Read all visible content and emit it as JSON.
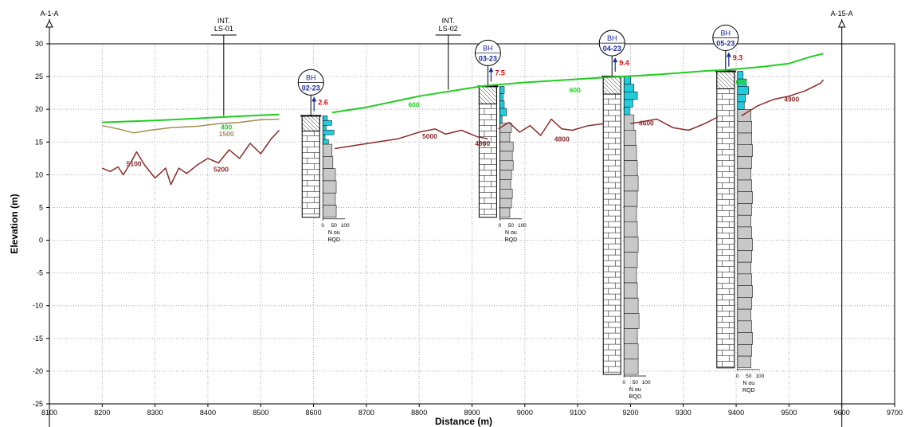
{
  "chart_data": {
    "type": "line",
    "title": "",
    "xlabel": "Distance  (m)",
    "ylabel": "Elevation (m)",
    "xlim": [
      8100,
      9700
    ],
    "ylim": [
      -25,
      30
    ],
    "x_ticks": [
      "8100",
      "8200",
      "8300",
      "8400",
      "8500",
      "8600",
      "8700",
      "8800",
      "8900",
      "9000",
      "9100",
      "9200",
      "9300",
      "9400",
      "9500",
      "9600",
      "9700"
    ],
    "y_ticks": [
      "30",
      "25",
      "20",
      "15",
      "10",
      "5",
      "0",
      "-5",
      "-10",
      "-15",
      "-20",
      "-25"
    ],
    "grid": true,
    "section_ends": [
      {
        "label": "A-1-A",
        "x": 8100
      },
      {
        "label": "A-15-A",
        "x": 9600
      }
    ],
    "intersections": [
      {
        "label1": "INT.",
        "label2": "LS-01",
        "x": 8430,
        "y": 19.0
      },
      {
        "label1": "INT.",
        "label2": "LS-02",
        "x": 8855,
        "y": 23.0
      }
    ],
    "series": [
      {
        "name": "",
        "color": "#22cc22",
        "segments": [
          [
            [
              8200,
              18.0
            ],
            [
              8300,
              18.3
            ],
            [
              8400,
              18.7
            ],
            [
              8500,
              19.1
            ],
            [
              8535,
              19.2
            ]
          ],
          [
            [
              8635,
              19.5
            ],
            [
              8700,
              20.3
            ],
            [
              8800,
              22.0
            ],
            [
              8900,
              23.3
            ],
            [
              8925,
              23.6
            ],
            [
              9000,
              24.1
            ],
            [
              9100,
              24.6
            ],
            [
              9160,
              24.9
            ],
            [
              9250,
              25.3
            ],
            [
              9350,
              25.9
            ],
            [
              9380,
              26.0
            ],
            [
              9450,
              26.5
            ],
            [
              9500,
              27.0
            ],
            [
              9540,
              28.0
            ],
            [
              9565,
              28.5
            ]
          ]
        ]
      },
      {
        "name": "",
        "color": "#a09050",
        "segments": [
          [
            [
              8200,
              17.5
            ],
            [
              8230,
              17.0
            ],
            [
              8260,
              16.4
            ],
            [
              8290,
              16.8
            ],
            [
              8330,
              17.2
            ],
            [
              8380,
              17.4
            ],
            [
              8420,
              17.8
            ],
            [
              8460,
              18.0
            ],
            [
              8500,
              18.4
            ],
            [
              8535,
              18.5
            ]
          ]
        ]
      },
      {
        "name": "",
        "color": "#8b2a2a",
        "segments": [
          [
            [
              8200,
              11.0
            ],
            [
              8215,
              10.5
            ],
            [
              8230,
              11.2
            ],
            [
              8240,
              10.0
            ],
            [
              8255,
              12.0
            ],
            [
              8265,
              13.5
            ],
            [
              8280,
              11.5
            ],
            [
              8300,
              9.5
            ],
            [
              8320,
              11.0
            ],
            [
              8330,
              8.5
            ],
            [
              8345,
              11.0
            ],
            [
              8360,
              10.2
            ],
            [
              8380,
              11.5
            ],
            [
              8400,
              12.5
            ],
            [
              8420,
              11.8
            ],
            [
              8440,
              13.8
            ],
            [
              8460,
              12.5
            ],
            [
              8480,
              14.8
            ],
            [
              8500,
              13.2
            ],
            [
              8520,
              15.5
            ],
            [
              8535,
              16.8
            ]
          ],
          [
            [
              8640,
              14.0
            ],
            [
              8680,
              14.5
            ],
            [
              8720,
              15.0
            ],
            [
              8760,
              15.5
            ],
            [
              8800,
              16.5
            ],
            [
              8830,
              17.0
            ],
            [
              8850,
              16.2
            ],
            [
              8880,
              16.8
            ],
            [
              8910,
              15.8
            ],
            [
              8930,
              15.5
            ]
          ],
          [
            [
              8950,
              17.0
            ],
            [
              8970,
              18.0
            ],
            [
              8990,
              16.5
            ],
            [
              9010,
              17.5
            ],
            [
              9030,
              16.0
            ],
            [
              9050,
              18.5
            ],
            [
              9070,
              17.0
            ],
            [
              9090,
              16.8
            ],
            [
              9120,
              17.5
            ],
            [
              9150,
              17.8
            ]
          ],
          [
            [
              9200,
              17.8
            ],
            [
              9250,
              18.5
            ],
            [
              9280,
              17.2
            ],
            [
              9310,
              16.8
            ],
            [
              9340,
              17.8
            ],
            [
              9365,
              18.8
            ]
          ],
          [
            [
              9410,
              19.0
            ],
            [
              9440,
              20.5
            ],
            [
              9470,
              21.5
            ],
            [
              9500,
              22.0
            ],
            [
              9530,
              22.8
            ],
            [
              9560,
              24.0
            ],
            [
              9565,
              24.5
            ]
          ]
        ]
      }
    ],
    "annotations": [
      {
        "text": "5100",
        "x": 8260,
        "y": 11.3,
        "color": "#8b2a2a"
      },
      {
        "text": "5200",
        "x": 8425,
        "y": 10.5,
        "color": "#8b2a2a"
      },
      {
        "text": "400",
        "x": 8435,
        "y": 16.9,
        "color": "#22cc22"
      },
      {
        "text": "1500",
        "x": 8435,
        "y": 15.9,
        "color": "#a09050"
      },
      {
        "text": "600",
        "x": 8790,
        "y": 20.3,
        "color": "#22cc22"
      },
      {
        "text": "5000",
        "x": 8820,
        "y": 15.5,
        "color": "#8b2a2a"
      },
      {
        "text": "4900",
        "x": 8920,
        "y": 14.4,
        "color": "#8b2a2a"
      },
      {
        "text": "4800",
        "x": 9070,
        "y": 15.1,
        "color": "#8b2a2a"
      },
      {
        "text": "600",
        "x": 9095,
        "y": 22.6,
        "color": "#22cc22"
      },
      {
        "text": "4600",
        "x": 9230,
        "y": 17.5,
        "color": "#8b2a2a"
      },
      {
        "text": "600",
        "x": 9410,
        "y": 23.8,
        "color": "#22cc22"
      },
      {
        "text": "4900",
        "x": 9505,
        "y": 21.2,
        "color": "#8b2a2a"
      }
    ],
    "boreholes": [
      {
        "label1": "BH",
        "label2": "02-23",
        "x": 8595,
        "top": 19.0,
        "bottom": 3.5,
        "water": "2.6",
        "water_color": "#d01010",
        "axis_label1": "N ou",
        "axis_label2": "RQD",
        "axis_ticks": [
          "0",
          "50",
          "100"
        ],
        "rqd": [
          20,
          40,
          15,
          50,
          10,
          25
        ],
        "n": [
          55,
          60,
          75,
          80,
          75,
          80
        ]
      },
      {
        "label1": "BH",
        "label2": "03-23",
        "x": 8930,
        "top": 23.5,
        "bottom": 3.5,
        "water": "7.5",
        "water_color": "#d01010",
        "axis_label1": "N ou",
        "axis_label2": "RQD",
        "axis_ticks": [
          "0",
          "50",
          "100"
        ],
        "rqd": [
          20,
          15,
          20,
          30,
          10
        ],
        "n": [
          70,
          60,
          80,
          75,
          80,
          70,
          65,
          75,
          70,
          60
        ]
      },
      {
        "label1": "BH",
        "label2": "04-23",
        "x": 9165,
        "top": 25.0,
        "bottom": -20.5,
        "water": "9.4",
        "water_color": "#d01010",
        "axis_label1": "N ou",
        "axis_label2": "RQD",
        "axis_ticks": [
          "0",
          "50",
          "100"
        ],
        "rqd": [
          30,
          45,
          60,
          40,
          25
        ],
        "n": [
          60,
          70,
          75,
          80,
          85,
          80,
          75,
          80,
          85,
          80,
          75,
          80,
          85,
          90,
          80,
          85,
          85
        ]
      },
      {
        "label1": "BH",
        "label2": "05-23",
        "x": 9380,
        "top": 25.8,
        "bottom": -19.5,
        "water": "9.3",
        "water_color": "#d01010",
        "axis_label1": "N ou",
        "axis_label2": "RQD",
        "axis_ticks": [
          "0",
          "50",
          "100"
        ],
        "rqd": [
          25,
          40,
          50,
          35,
          30
        ],
        "n": [
          80,
          85,
          85,
          90,
          85,
          80,
          85,
          90,
          85,
          80,
          85,
          90,
          85,
          80,
          85,
          90,
          85,
          80,
          85,
          90,
          85,
          80
        ]
      }
    ],
    "colors": {
      "grid": "#aaaaaa",
      "rqd_fill": "#22ccdd",
      "n_fill": "#c8c8c8"
    }
  }
}
